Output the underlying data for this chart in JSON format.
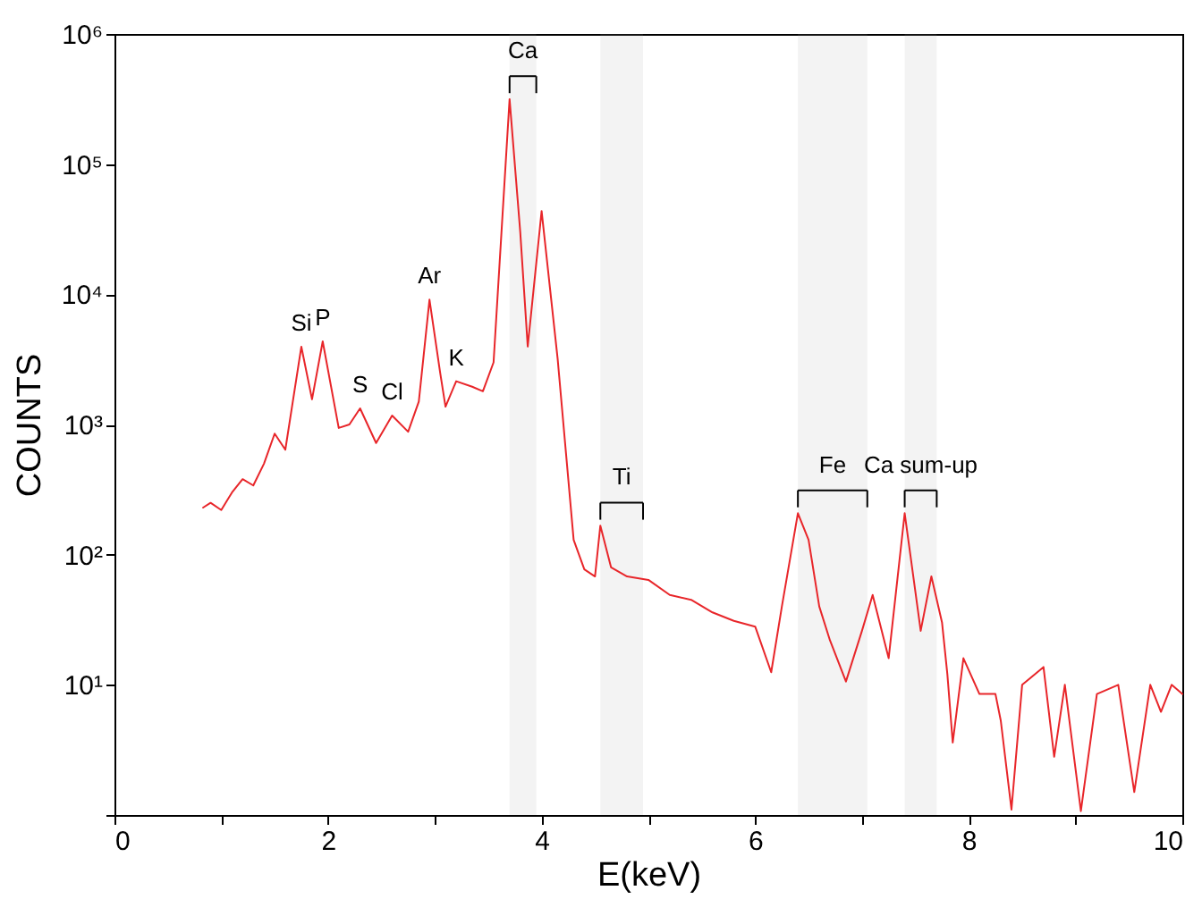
{
  "chart_data": {
    "type": "line",
    "xlabel": "E(keV)",
    "ylabel": "COUNTS",
    "log": true,
    "grid": false,
    "xlim": [
      0,
      10
    ],
    "xticks": [
      0,
      {
        "value": 1,
        "label": null
      },
      2,
      {
        "value": 3,
        "label": null
      },
      4,
      {
        "value": 5,
        "label": null
      },
      6,
      {
        "value": 7,
        "label": null
      },
      8,
      {
        "value": 9,
        "label": null
      },
      10
    ],
    "ylim": [
      1,
      1000000
    ],
    "yticks": [
      {
        "value": 1,
        "label": null
      },
      {
        "value": 10,
        "label": "10¹"
      },
      {
        "value": 100,
        "label": "10²"
      },
      {
        "value": 1000,
        "label": "10³"
      },
      {
        "value": 10000,
        "label": "10⁴"
      },
      {
        "value": 100000,
        "label": "10⁵"
      },
      {
        "value": 1000000,
        "label": "10⁶"
      }
    ],
    "series": [
      {
        "color": "#e8262a",
        "x": [
          0.83,
          0.9,
          1.0,
          1.1,
          1.2,
          1.3,
          1.4,
          1.5,
          1.6,
          1.75,
          1.85,
          1.95,
          2.1,
          2.2,
          2.3,
          2.45,
          2.6,
          2.75,
          2.85,
          2.95,
          3.05,
          3.1,
          3.2,
          3.35,
          3.45,
          3.55,
          3.7,
          3.8,
          3.87,
          4.0,
          4.15,
          4.3,
          4.4,
          4.5,
          4.55,
          4.65,
          4.8,
          5.0,
          5.2,
          5.4,
          5.6,
          5.8,
          6.0,
          6.15,
          6.25,
          6.4,
          6.5,
          6.6,
          6.7,
          6.85,
          7.0,
          7.1,
          7.25,
          7.4,
          7.55,
          7.65,
          7.75,
          7.8,
          7.85,
          7.95,
          8.1,
          8.25,
          8.3,
          8.4,
          8.5,
          8.7,
          8.8,
          8.9,
          9.05,
          9.2,
          9.4,
          9.55,
          9.7,
          9.8,
          9.9,
          10.0
        ],
        "values": [
          230,
          250,
          220,
          300,
          380,
          340,
          500,
          850,
          640,
          3960,
          1560,
          4350,
          940,
          1000,
          1330,
          720,
          1170,
          880,
          1500,
          9100,
          2500,
          1370,
          2150,
          1950,
          1800,
          3000,
          316000,
          30000,
          3970,
          43600,
          3200,
          130,
          77,
          68,
          167,
          80,
          68,
          64,
          49,
          45,
          36,
          31,
          28,
          12.5,
          40,
          208,
          130,
          40,
          22,
          10.6,
          26,
          49,
          16,
          208,
          26,
          68,
          30,
          12,
          3.6,
          16,
          8.5,
          8.5,
          5.3,
          1.1,
          10,
          13.7,
          2.8,
          10,
          1.07,
          8.5,
          10,
          1.5,
          10,
          6.2,
          10,
          8.5
        ]
      }
    ],
    "annotations": [
      {
        "text": "Si",
        "x": 1.75,
        "y": 3960
      },
      {
        "text": "P",
        "x": 1.95,
        "y": 4350
      },
      {
        "text": "S",
        "x": 2.3,
        "y": 1330
      },
      {
        "text": "Cl",
        "x": 2.6,
        "y": 1170
      },
      {
        "text": "Ar",
        "x": 2.95,
        "y": 9100
      },
      {
        "text": "K",
        "x": 3.2,
        "y": 2150
      }
    ],
    "bands": [
      {
        "axis": "x",
        "from": 3.7,
        "to": 3.95,
        "label": "Ca"
      },
      {
        "axis": "x",
        "from": 4.55,
        "to": 4.95,
        "label": "Ti"
      },
      {
        "axis": "x",
        "from": 6.4,
        "to": 7.05,
        "label": "Fe"
      },
      {
        "axis": "x",
        "from": 7.4,
        "to": 7.7,
        "label": "Ca sum-up"
      }
    ]
  }
}
